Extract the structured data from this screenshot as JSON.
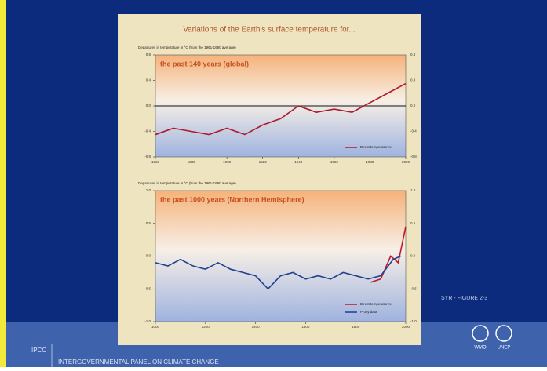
{
  "slide": {
    "title": "Variations of the Earth's surface temperature for...",
    "figure_label": "SYR - FIGURE 2-3",
    "footer_org": "IPCC",
    "footer_full": "INTERGOVERNMENTAL PANEL ON CLIMATE CHANGE",
    "logos": [
      "WMO",
      "UNEP"
    ]
  },
  "chart_data": [
    {
      "type": "line",
      "title": "the past 140 years (global)",
      "y_label": "Departures in temperature in °C (from the 1961-1990 average)",
      "xlim": [
        1860,
        2000
      ],
      "xticks": [
        1860,
        1880,
        1900,
        1920,
        1940,
        1960,
        1980,
        2000
      ],
      "ylim": [
        -0.8,
        0.8
      ],
      "yticks": [
        0.8,
        0.4,
        {
          "value": 0,
          "label": "0.0"
        },
        -0.4,
        -0.8
      ],
      "series": [
        {
          "name": "Direct temperatures",
          "color": "#b0182a",
          "x": [
            1860,
            1870,
            1880,
            1890,
            1900,
            1910,
            1920,
            1930,
            1940,
            1950,
            1960,
            1970,
            1980,
            1990,
            2000
          ],
          "values": [
            -0.45,
            -0.35,
            -0.4,
            -0.45,
            -0.35,
            -0.45,
            -0.3,
            -0.2,
            0.0,
            -0.1,
            -0.05,
            -0.1,
            0.05,
            0.2,
            0.35
          ]
        }
      ]
    },
    {
      "type": "line",
      "title": "the past 1000 years (Northern Hemisphere)",
      "y_label": "Departures in temperature in °C (from the 1961-1990 average)",
      "xlim": [
        1000,
        2000
      ],
      "xticks": [
        1000,
        1200,
        1400,
        1600,
        1800,
        2000
      ],
      "ylim": [
        -1.0,
        1.0
      ],
      "yticks": [
        {
          "value": 1,
          "label": "1.0"
        },
        0.5,
        {
          "value": 0,
          "label": "0.0"
        },
        -0.5,
        {
          "value": -1,
          "label": "-1.0"
        }
      ],
      "series": [
        {
          "name": "Direct temperatures",
          "color": "#c0182a",
          "x": [
            1860,
            1900,
            1940,
            1970,
            2000
          ],
          "values": [
            -0.4,
            -0.35,
            0.0,
            -0.1,
            0.45
          ]
        },
        {
          "name": "Proxy data",
          "color": "#1f3f8f",
          "x": [
            1000,
            1050,
            1100,
            1150,
            1200,
            1250,
            1300,
            1350,
            1400,
            1450,
            1500,
            1550,
            1600,
            1650,
            1700,
            1750,
            1800,
            1850,
            1900,
            1950,
            1980
          ],
          "values": [
            -0.1,
            -0.15,
            -0.05,
            -0.15,
            -0.2,
            -0.1,
            -0.2,
            -0.25,
            -0.3,
            -0.5,
            -0.3,
            -0.25,
            -0.35,
            -0.3,
            -0.35,
            -0.25,
            -0.3,
            -0.35,
            -0.3,
            -0.05,
            0.0
          ]
        }
      ]
    }
  ]
}
